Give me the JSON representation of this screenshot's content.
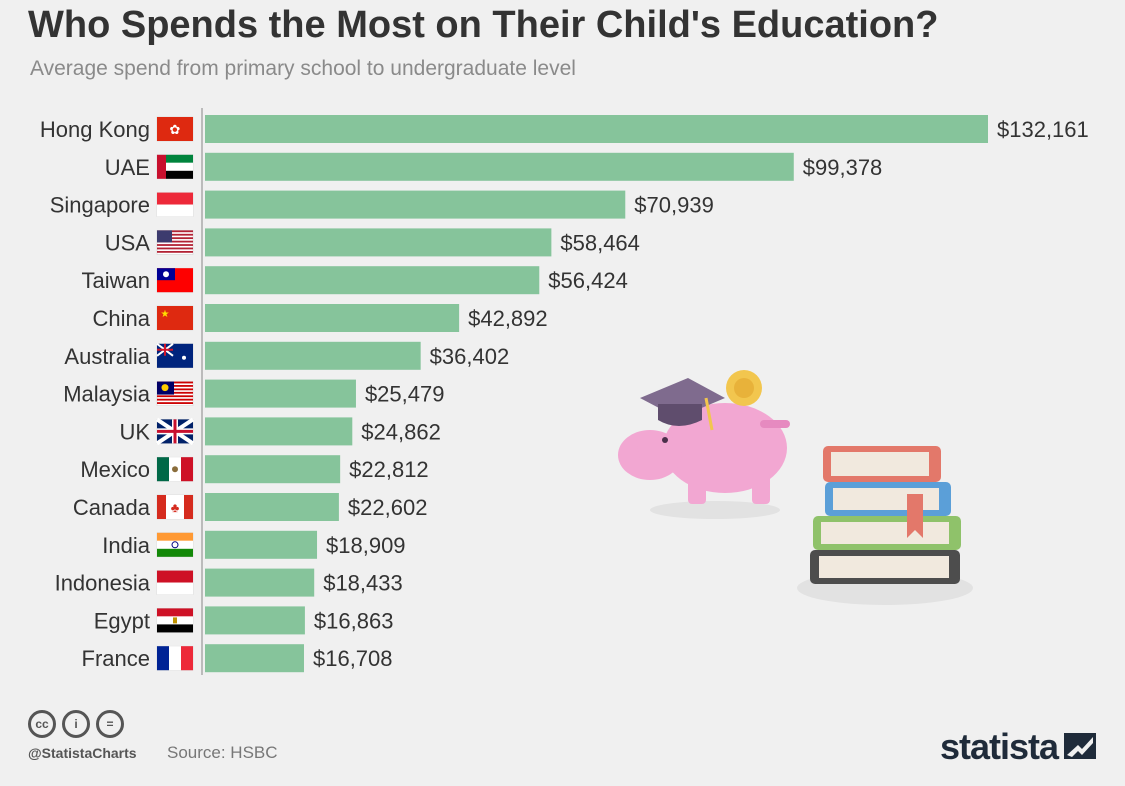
{
  "header": {
    "title": "Who Spends the Most on Their Child's Education?",
    "subtitle": "Average spend from primary school to undergraduate level"
  },
  "chart_data": {
    "type": "bar",
    "orientation": "horizontal",
    "categories": [
      "Hong Kong",
      "UAE",
      "Singapore",
      "USA",
      "Taiwan",
      "China",
      "Australia",
      "Malaysia",
      "UK",
      "Mexico",
      "Canada",
      "India",
      "Indonesia",
      "Egypt",
      "France"
    ],
    "values": [
      132161,
      99378,
      70939,
      58464,
      56424,
      42892,
      36402,
      25479,
      24862,
      22812,
      22602,
      18909,
      18433,
      16863,
      16708
    ],
    "value_labels": [
      "$132,161",
      "$99,378",
      "$70,939",
      "$58,464",
      "$56,424",
      "$42,892",
      "$36,402",
      "$25,479",
      "$24,862",
      "$22,812",
      "$22,602",
      "$18,909",
      "$18,433",
      "$16,863",
      "$16,708"
    ],
    "bar_color": "#86c49b",
    "flags": [
      "hong-kong-flag-icon",
      "uae-flag-icon",
      "singapore-flag-icon",
      "usa-flag-icon",
      "taiwan-flag-icon",
      "china-flag-icon",
      "australia-flag-icon",
      "malaysia-flag-icon",
      "uk-flag-icon",
      "mexico-flag-icon",
      "canada-flag-icon",
      "india-flag-icon",
      "indonesia-flag-icon",
      "egypt-flag-icon",
      "france-flag-icon"
    ],
    "grid": false,
    "xlim": [
      0,
      132161
    ]
  },
  "footer": {
    "cc_icons": [
      "cc",
      "i",
      "="
    ],
    "handle": "@StatistaCharts",
    "source": "Source: HSBC",
    "brand": "statista"
  },
  "colors": {
    "title": "#333333",
    "subtitle": "#8a8a8a",
    "bar": "#86c49b",
    "background": "#f0f0f0"
  }
}
